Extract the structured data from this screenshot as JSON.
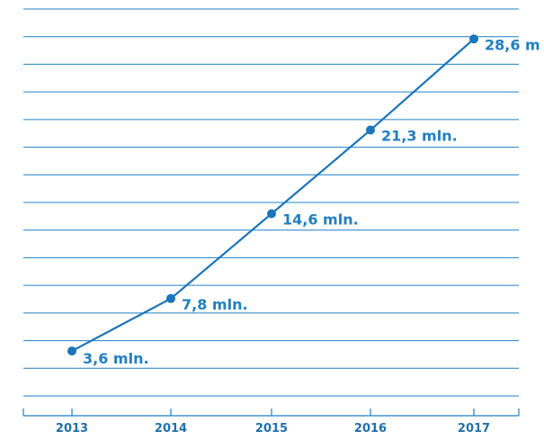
{
  "chart_data": {
    "type": "line",
    "title": "",
    "xlabel": "",
    "ylabel": "",
    "categories": [
      "2013",
      "2014",
      "2015",
      "2016",
      "2017"
    ],
    "series": [
      {
        "values": [
          3.6,
          7.8,
          14.6,
          21.3,
          28.6
        ],
        "labels": [
          "3,6 mln.",
          "7,8 mln.",
          "14,6 mln.",
          "21,3 mln.",
          "28,6 m"
        ]
      }
    ],
    "ylim": [
      0,
      31
    ],
    "grid": true,
    "legend": "none",
    "colors": {
      "series": "#1a75bb",
      "grid": "#1f7fc4",
      "text": "#1f7fc4"
    }
  }
}
